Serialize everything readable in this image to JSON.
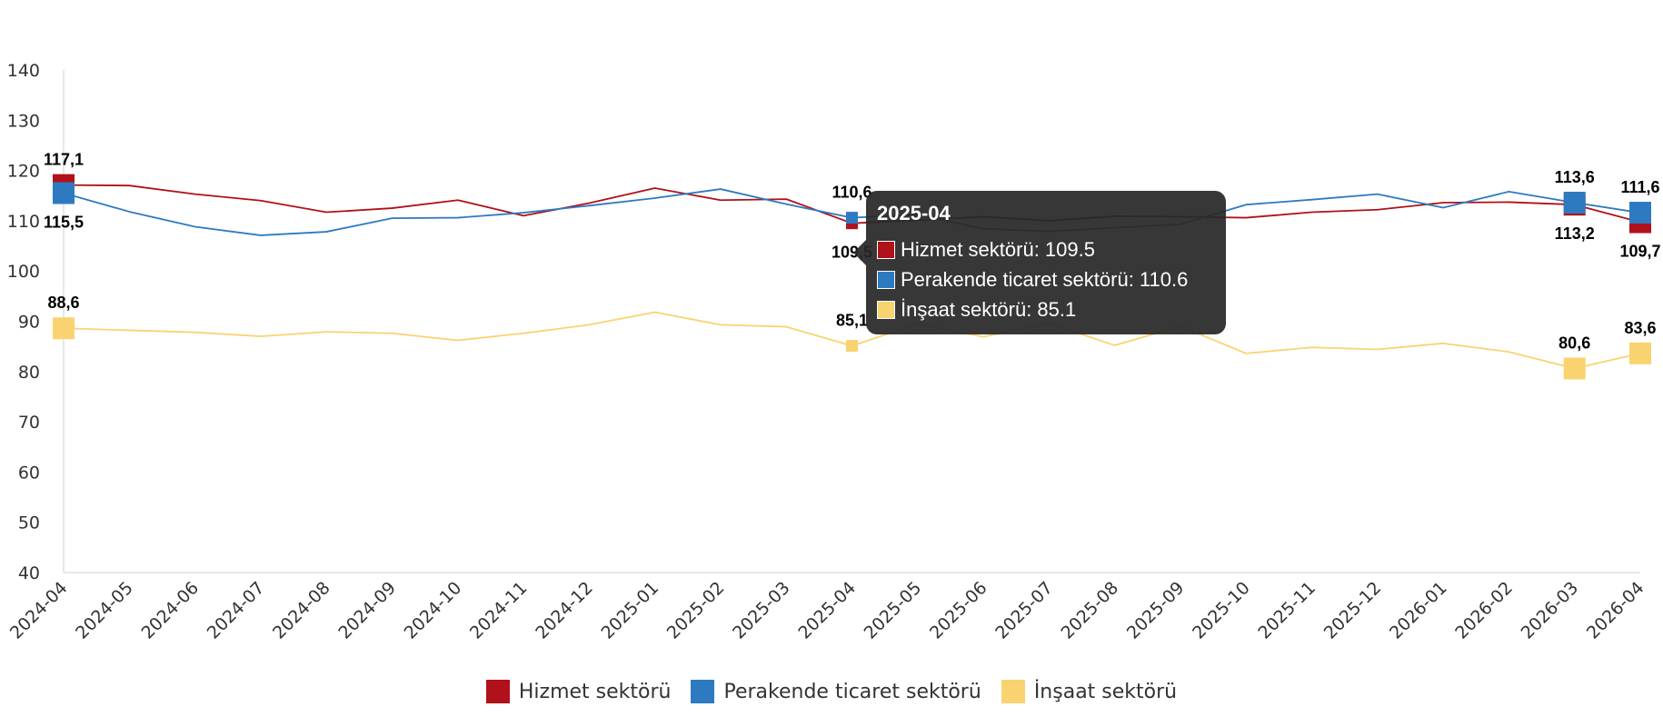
{
  "chart_data": {
    "type": "line",
    "categories": [
      "2024-04",
      "2024-05",
      "2024-06",
      "2024-07",
      "2024-08",
      "2024-09",
      "2024-10",
      "2024-11",
      "2024-12",
      "2025-01",
      "2025-02",
      "2025-03",
      "2025-04",
      "2025-05",
      "2025-06",
      "2025-07",
      "2025-08",
      "2025-09",
      "2025-10",
      "2025-11",
      "2025-12",
      "2026-01",
      "2026-02",
      "2026-03",
      "2026-04"
    ],
    "ylim": [
      40,
      140
    ],
    "yticks": [
      40,
      50,
      60,
      70,
      80,
      90,
      100,
      110,
      120,
      130,
      140
    ],
    "grid": false,
    "legend_position": "bottom-center",
    "series": [
      {
        "name": "Hizmet sektörü",
        "color": "#B0111A",
        "values": [
          117.1,
          117.0,
          115.3,
          114.0,
          111.7,
          112.5,
          114.1,
          111.0,
          113.5,
          116.5,
          114.1,
          114.3,
          109.5,
          110.1,
          110.8,
          110.0,
          110.9,
          110.8,
          110.6,
          111.7,
          112.2,
          113.6,
          113.7,
          113.2,
          109.7
        ],
        "labels": {
          "0": "117,1",
          "12": "109,5",
          "23": "113,2",
          "24": "109,7"
        }
      },
      {
        "name": "Perakende ticaret sektörü",
        "color": "#2E7AC0",
        "values": [
          115.5,
          111.8,
          108.8,
          107.1,
          107.8,
          110.5,
          110.6,
          111.6,
          113.0,
          114.5,
          116.3,
          113.3,
          110.6,
          111.2,
          108.4,
          107.9,
          108.6,
          109.3,
          113.2,
          114.2,
          115.3,
          112.6,
          115.8,
          113.6,
          111.6
        ],
        "labels": {
          "0": "115,5",
          "12": "110,6",
          "23": "113,6",
          "24": "111,6"
        }
      },
      {
        "name": "İnşaat sektörü",
        "color": "#F9D36F",
        "values": [
          88.6,
          88.2,
          87.8,
          87.0,
          87.9,
          87.6,
          86.2,
          87.6,
          89.3,
          91.8,
          89.3,
          88.9,
          85.1,
          89.5,
          86.9,
          89.6,
          85.2,
          89.0,
          83.6,
          84.8,
          84.4,
          85.6,
          83.9,
          80.6,
          83.6
        ],
        "labels": {
          "0": "88,6",
          "12": "85,1",
          "23": "80,6",
          "24": "83,6"
        }
      }
    ]
  },
  "tooltip": {
    "title": "2025-04",
    "rows": [
      {
        "text": "Hizmet sektörü: 109.5"
      },
      {
        "text": "Perakende ticaret sektörü: 110.6"
      },
      {
        "text": "İnşaat sektörü: 85.1"
      }
    ]
  }
}
